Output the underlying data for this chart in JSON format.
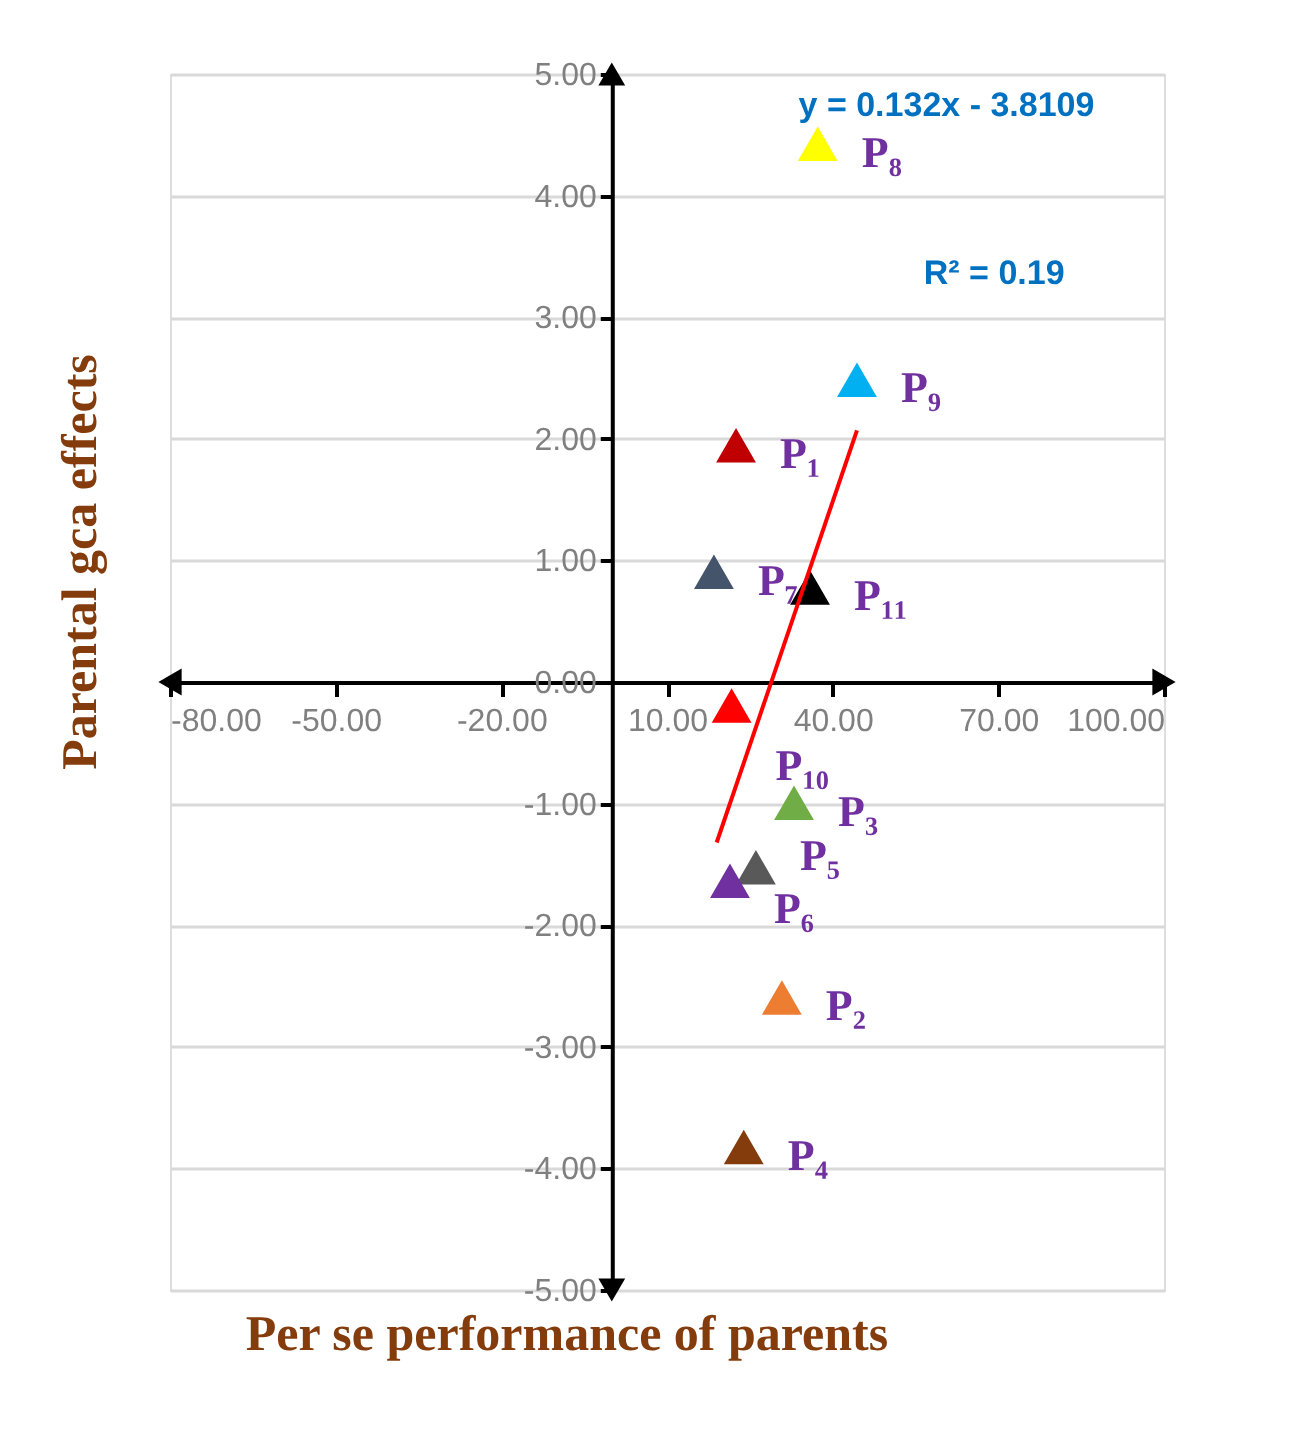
{
  "chart_data": {
    "type": "scatter",
    "marker": "triangle",
    "grid": "y",
    "xlabel": "Per se performance  of parents",
    "ylabel": "Parental gca effects",
    "annotations": [
      "y = 0.132x - 3.8109",
      "R² = 0.19"
    ],
    "xlim": [
      -80,
      100
    ],
    "xticks": [
      {
        "value": -80,
        "label": "-80.00"
      },
      {
        "value": -50,
        "label": "-50.00"
      },
      {
        "value": -20,
        "label": "-20.00"
      },
      {
        "value": 10,
        "label": "10.00"
      },
      {
        "value": 40,
        "label": "40.00"
      },
      {
        "value": 70,
        "label": "70.00"
      },
      {
        "value": 100,
        "label": "100.00"
      }
    ],
    "ylim": [
      -5,
      5
    ],
    "yticks": [
      {
        "value": -5,
        "label": "-5.00"
      },
      {
        "value": -4,
        "label": "-4.00"
      },
      {
        "value": -3,
        "label": "-3.00"
      },
      {
        "value": -2,
        "label": "-2.00"
      },
      {
        "value": -1,
        "label": "-1.00"
      },
      {
        "value": 0,
        "label": "0.00"
      },
      {
        "value": 1,
        "label": "1.00"
      },
      {
        "value": 2,
        "label": "2.00"
      },
      {
        "value": 3,
        "label": "3.00"
      },
      {
        "value": 4,
        "label": "4.00"
      },
      {
        "value": 5,
        "label": "5.00"
      }
    ],
    "series": [
      {
        "name": "P₁",
        "color": "#c00000",
        "x": [
          22.5
        ],
        "values": [
          1.94
        ]
      },
      {
        "name": "P₂",
        "color": "#ed7d31",
        "x": [
          30.8
        ],
        "values": [
          -2.6
        ]
      },
      {
        "name": "P₃",
        "color": "#70ad47",
        "x": [
          33.0
        ],
        "values": [
          -1.0
        ]
      },
      {
        "name": "P₄",
        "color": "#843c0c",
        "x": [
          23.9
        ],
        "values": [
          -3.83
        ]
      },
      {
        "name": "P₅",
        "color": "#595959",
        "x": [
          26.1
        ],
        "values": [
          -1.53
        ]
      },
      {
        "name": "P₆",
        "color": "#7030a0",
        "x": [
          21.4
        ],
        "values": [
          -1.64
        ]
      },
      {
        "name": "P₇",
        "color": "#44546a",
        "x": [
          18.5
        ],
        "values": [
          0.9
        ]
      },
      {
        "name": "P₈",
        "color": "#ffff00",
        "x": [
          37.3
        ],
        "values": [
          4.42
        ]
      },
      {
        "name": "P₉",
        "color": "#00b0f0",
        "x": [
          44.4
        ],
        "values": [
          2.48
        ]
      },
      {
        "name": "P₁₀",
        "color": "#ff0000",
        "x": [
          21.7
        ],
        "values": [
          -0.2
        ]
      },
      {
        "name": "P₁₁",
        "color": "#000000",
        "x": [
          35.9
        ],
        "values": [
          0.77
        ]
      },
      {
        "type": "line",
        "marker": "none",
        "color": "#ff0000",
        "x": [
          19.0,
          44.4
        ],
        "values": [
          -1.32,
          2.07
        ]
      }
    ]
  }
}
